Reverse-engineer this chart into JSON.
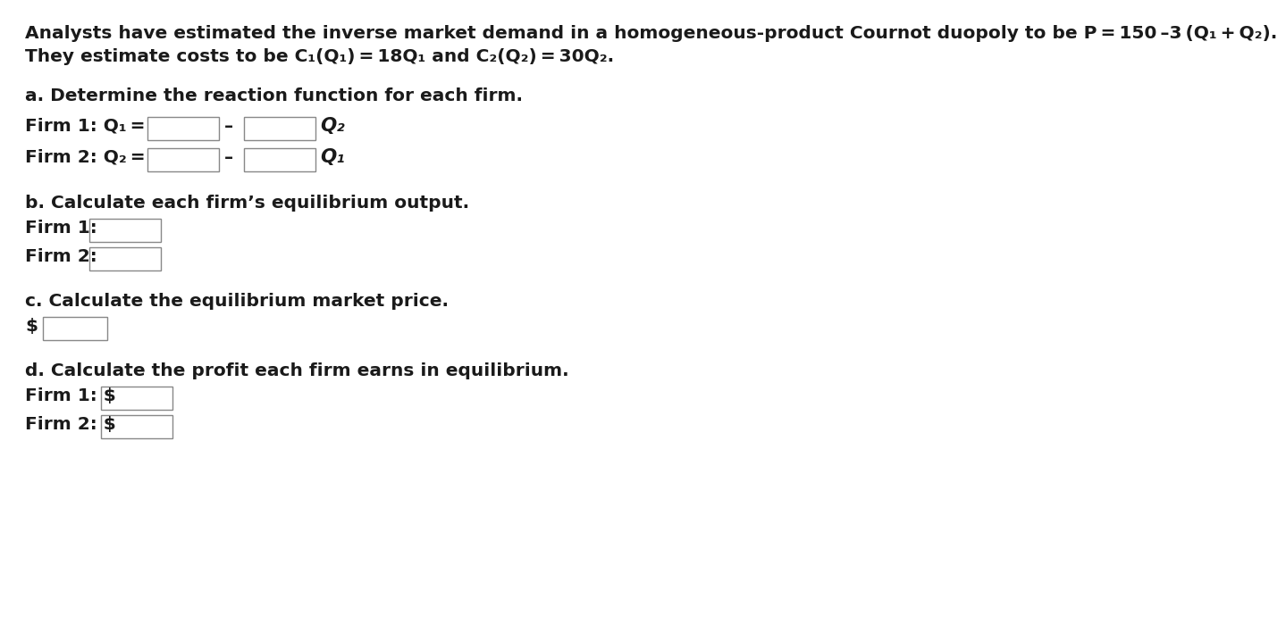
{
  "background_color": "#ffffff",
  "text_color": "#1a1a1a",
  "box_facecolor": "#ffffff",
  "box_edgecolor": "#888888",
  "font_size": 14.5,
  "font_weight": "bold",
  "font_family": "Arial",
  "line1": "Analysts have estimated the inverse market demand in a homogeneous-product Cournot duopoly to be P = 150 –3 (Q₁ + Q₂).",
  "line2": "They estimate costs to be C₁(Q₁) = 18Q₁ and C₂(Q₂) = 30Q₂.",
  "section_a": "a. Determine the reaction function for each firm.",
  "firm1_react_pre": "Firm 1: Q₁ =",
  "firm2_react_pre": "Firm 2: Q₂ =",
  "minus": "–",
  "q2_label": "Q₂",
  "q1_label": "Q₁",
  "section_b": "b. Calculate each firm’s equilibrium output.",
  "firm1_b": "Firm 1:",
  "firm2_b": "Firm 2:",
  "section_c": "c. Calculate the equilibrium market price.",
  "dollar": "$",
  "section_d": "d. Calculate the profit each firm earns in equilibrium.",
  "firm1_d": "Firm 1: $",
  "firm2_d": "Firm 2: $"
}
